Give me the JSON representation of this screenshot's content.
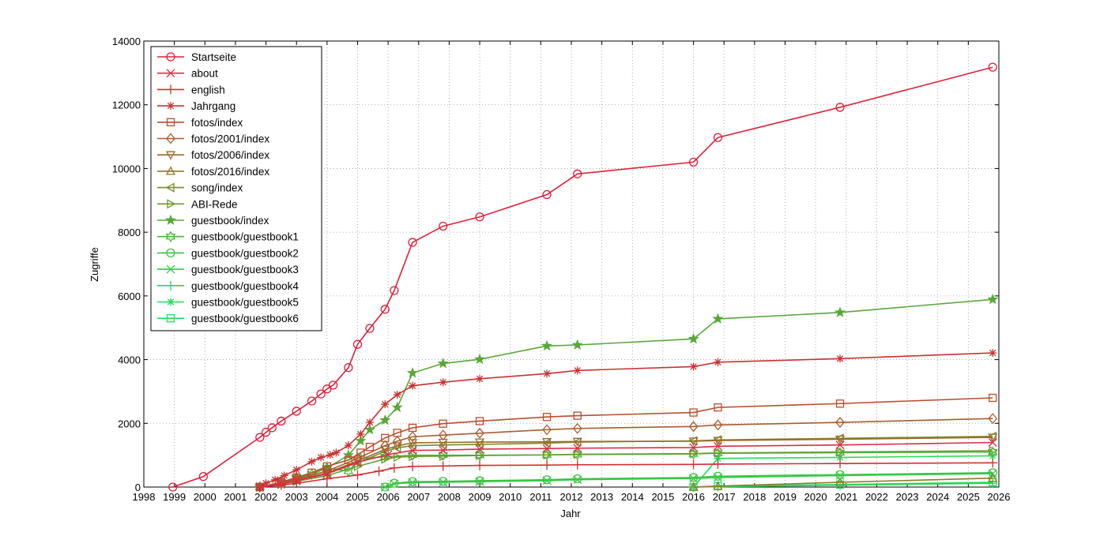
{
  "chart_data": {
    "type": "line",
    "title": "",
    "xlabel": "Jahr",
    "ylabel": "Zugriffe",
    "xlim": [
      1998,
      2026
    ],
    "ylim": [
      0,
      14000
    ],
    "xticks": [
      1998,
      1999,
      2000,
      2001,
      2002,
      2003,
      2004,
      2005,
      2006,
      2007,
      2008,
      2009,
      2010,
      2011,
      2012,
      2013,
      2014,
      2015,
      2016,
      2017,
      2018,
      2019,
      2020,
      2021,
      2022,
      2023,
      2024,
      2025,
      2026
    ],
    "yticks": [
      0,
      2000,
      4000,
      6000,
      8000,
      10000,
      12000,
      14000
    ],
    "grid": true,
    "legend_position": "top-left",
    "series": [
      {
        "name": "Startseite",
        "color": "#e0203a",
        "marker": "circle",
        "x": [
          1998.95,
          1999.95,
          2001.8,
          2002.0,
          2002.2,
          2002.5,
          2003.0,
          2003.5,
          2003.8,
          2004.0,
          2004.2,
          2004.7,
          2005.0,
          2005.4,
          2005.9,
          2006.2,
          2006.8,
          2007.8,
          2009.0,
          2011.2,
          2012.2,
          2016.0,
          2016.8,
          2020.8,
          2025.8
        ],
        "y": [
          0,
          330,
          1560,
          1720,
          1860,
          2070,
          2380,
          2700,
          2920,
          3080,
          3200,
          3750,
          4480,
          4980,
          5580,
          6170,
          7680,
          8190,
          8480,
          9180,
          9830,
          10200,
          10970,
          11920,
          13180
        ]
      },
      {
        "name": "about",
        "color": "#dd2c48",
        "marker": "x",
        "x": [
          2001.8,
          2002.5,
          2003.0,
          2004.0,
          2005.0,
          2006.0,
          2006.8,
          2007.8,
          2009.0,
          2011.2,
          2012.2,
          2016.0,
          2016.8,
          2020.8,
          2025.8
        ],
        "y": [
          0,
          100,
          200,
          420,
          780,
          1020,
          1150,
          1160,
          1190,
          1210,
          1220,
          1240,
          1280,
          1320,
          1400
        ]
      },
      {
        "name": "english",
        "color": "#d42e2e",
        "marker": "plus",
        "x": [
          2001.8,
          2002.5,
          2003.0,
          2004.0,
          2005.0,
          2005.7,
          2006.2,
          2006.8,
          2007.8,
          2009.0,
          2011.2,
          2012.2,
          2016.0,
          2016.8,
          2020.8,
          2025.8
        ],
        "y": [
          0,
          60,
          120,
          260,
          380,
          500,
          600,
          650,
          660,
          680,
          690,
          700,
          710,
          720,
          740,
          760
        ]
      },
      {
        "name": "Jahrgang",
        "color": "#c83232",
        "marker": "star",
        "x": [
          2001.8,
          2002.0,
          2002.3,
          2002.6,
          2003.0,
          2003.5,
          2003.8,
          2004.1,
          2004.3,
          2004.7,
          2005.1,
          2005.4,
          2005.9,
          2006.3,
          2006.8,
          2007.8,
          2009.0,
          2011.2,
          2012.2,
          2016.0,
          2016.8,
          2020.8,
          2025.8
        ],
        "y": [
          0,
          120,
          230,
          360,
          540,
          800,
          930,
          1010,
          1080,
          1310,
          1660,
          2030,
          2600,
          2900,
          3180,
          3290,
          3400,
          3560,
          3660,
          3780,
          3920,
          4030,
          4210
        ]
      },
      {
        "name": "fotos/index",
        "color": "#b84e2e",
        "marker": "square",
        "x": [
          2001.8,
          2002.5,
          2003.0,
          2003.5,
          2004.0,
          2004.7,
          2005.1,
          2005.4,
          2005.9,
          2006.3,
          2006.8,
          2007.8,
          2009.0,
          2011.2,
          2012.2,
          2016.0,
          2016.8,
          2020.8,
          2025.8
        ],
        "y": [
          0,
          150,
          300,
          450,
          650,
          850,
          1080,
          1260,
          1540,
          1700,
          1860,
          1990,
          2070,
          2200,
          2240,
          2340,
          2500,
          2620,
          2800
        ]
      },
      {
        "name": "fotos/2001/index",
        "color": "#a85c2e",
        "marker": "diamond",
        "x": [
          2001.8,
          2002.5,
          2003.0,
          2004.0,
          2005.0,
          2005.9,
          2006.3,
          2006.8,
          2007.8,
          2009.0,
          2011.2,
          2012.2,
          2016.0,
          2016.8,
          2020.8,
          2025.8
        ],
        "y": [
          0,
          130,
          260,
          500,
          900,
          1300,
          1440,
          1580,
          1630,
          1690,
          1800,
          1840,
          1900,
          1950,
          2030,
          2150
        ]
      },
      {
        "name": "fotos/2006/index",
        "color": "#9a6a28",
        "marker": "triangle-down",
        "x": [
          2001.8,
          2002.5,
          2003.0,
          2004.0,
          2005.0,
          2005.9,
          2006.3,
          2006.8,
          2007.8,
          2009.0,
          2011.2,
          2012.2,
          2016.0,
          2016.8,
          2020.8,
          2025.8
        ],
        "y": [
          0,
          110,
          230,
          440,
          820,
          1180,
          1290,
          1390,
          1400,
          1410,
          1420,
          1430,
          1440,
          1460,
          1500,
          1560
        ]
      },
      {
        "name": "fotos/2016/index",
        "color": "#8c7a2a",
        "marker": "triangle-up",
        "x": [
          2016.0,
          2016.8,
          2020.8,
          2025.8
        ],
        "y": [
          0,
          30,
          150,
          280
        ]
      },
      {
        "name": "song/index",
        "color": "#7c8a2c",
        "marker": "triangle-left",
        "x": [
          2001.8,
          2002.5,
          2003.0,
          2004.0,
          2005.0,
          2005.9,
          2006.3,
          2006.8,
          2007.8,
          2009.0,
          2011.2,
          2012.2,
          2016.0,
          2016.8,
          2020.8,
          2025.8
        ],
        "y": [
          0,
          100,
          210,
          420,
          760,
          1120,
          1230,
          1300,
          1320,
          1340,
          1380,
          1410,
          1450,
          1480,
          1530,
          1590
        ]
      },
      {
        "name": "ABI-Rede",
        "color": "#6a9a30",
        "marker": "triangle-right",
        "x": [
          2001.8,
          2002.5,
          2003.0,
          2004.0,
          2005.0,
          2005.9,
          2006.3,
          2006.8,
          2007.8,
          2009.0,
          2011.2,
          2012.2,
          2016.0,
          2016.8,
          2020.8,
          2025.8
        ],
        "y": [
          0,
          90,
          180,
          360,
          650,
          880,
          940,
          960,
          970,
          990,
          1010,
          1030,
          1050,
          1070,
          1100,
          1140
        ]
      },
      {
        "name": "guestbook/index",
        "color": "#58a838",
        "marker": "pentagram",
        "x": [
          2001.8,
          2002.5,
          2003.0,
          2004.0,
          2004.7,
          2005.1,
          2005.4,
          2005.9,
          2006.3,
          2006.8,
          2007.8,
          2009.0,
          2011.2,
          2012.2,
          2016.0,
          2016.8,
          2020.8,
          2025.8
        ],
        "y": [
          0,
          150,
          300,
          600,
          1000,
          1450,
          1800,
          2100,
          2500,
          3580,
          3880,
          4010,
          4430,
          4460,
          4650,
          5280,
          5480,
          5890
        ]
      },
      {
        "name": "guestbook/guestbook1",
        "color": "#4ab83a",
        "marker": "hexagram",
        "x": [
          2001.8,
          2002.5,
          2003.0,
          2003.5,
          2004.0,
          2004.7,
          2005.1,
          2005.9,
          2006.8,
          2007.8,
          2009.0,
          2011.2,
          2012.2,
          2016.0,
          2016.8,
          2020.8,
          2025.8
        ],
        "y": [
          0,
          150,
          300,
          400,
          600,
          500,
          900,
          950,
          1000,
          1000,
          1000,
          1010,
          1020,
          1040,
          1060,
          1080,
          1100
        ]
      },
      {
        "name": "guestbook/guestbook2",
        "color": "#3cc440",
        "marker": "circle",
        "x": [
          2005.9,
          2006.2,
          2006.8,
          2007.8,
          2009.0,
          2011.2,
          2012.2,
          2016.0,
          2016.8,
          2020.8,
          2025.8
        ],
        "y": [
          0,
          120,
          170,
          180,
          200,
          230,
          260,
          300,
          340,
          390,
          450
        ]
      },
      {
        "name": "guestbook/guestbook3",
        "color": "#32cc48",
        "marker": "x",
        "x": [
          2005.9,
          2006.2,
          2006.8,
          2007.8,
          2009.0,
          2011.2,
          2012.2,
          2016.0,
          2016.8,
          2020.8,
          2025.8
        ],
        "y": [
          0,
          100,
          140,
          150,
          170,
          200,
          230,
          270,
          300,
          360,
          420
        ]
      },
      {
        "name": "guestbook/guestbook4",
        "color": "#2ad450",
        "marker": "plus",
        "x": [
          2016.0,
          2016.8,
          2020.8,
          2025.8
        ],
        "y": [
          0,
          10,
          60,
          120
        ]
      },
      {
        "name": "guestbook/guestbook5",
        "color": "#24dc58",
        "marker": "star",
        "x": [
          2016.0,
          2016.8,
          2020.8,
          2025.8
        ],
        "y": [
          0,
          900,
          930,
          980
        ]
      },
      {
        "name": "guestbook/guestbook6",
        "color": "#20e060",
        "marker": "square",
        "x": [
          2016.0,
          2016.8,
          2020.8,
          2025.8
        ],
        "y": [
          0,
          30,
          80,
          150
        ]
      }
    ]
  }
}
